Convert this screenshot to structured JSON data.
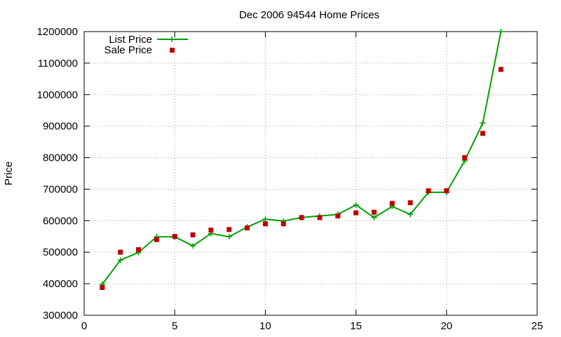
{
  "chart_data": {
    "type": "line",
    "title": "Dec 2006 94544 Home Prices",
    "xlabel": "",
    "ylabel": "Price",
    "xlim": [
      0,
      25
    ],
    "ylim": [
      300000,
      1200000
    ],
    "x_ticks": [
      0,
      5,
      10,
      15,
      20,
      25
    ],
    "y_ticks": [
      300000,
      400000,
      500000,
      600000,
      700000,
      800000,
      900000,
      1000000,
      1100000,
      1200000
    ],
    "grid": true,
    "legend_position": "top-left",
    "series": [
      {
        "name": "List Price",
        "style": "line-with-plus",
        "color": "#00a000",
        "x": [
          1,
          2,
          3,
          4,
          5,
          6,
          7,
          8,
          9,
          10,
          11,
          12,
          13,
          14,
          15,
          16,
          17,
          18,
          19,
          20,
          21,
          22,
          23
        ],
        "values": [
          398000,
          475000,
          499000,
          549000,
          549000,
          520000,
          559000,
          549000,
          580000,
          605000,
          599000,
          610000,
          615000,
          620000,
          650000,
          610000,
          645000,
          620000,
          690000,
          690000,
          790000,
          910000,
          1200000
        ]
      },
      {
        "name": "Sale Price",
        "style": "square-points",
        "color": "#c00000",
        "x": [
          1,
          2,
          3,
          4,
          5,
          6,
          7,
          8,
          9,
          10,
          11,
          12,
          13,
          14,
          15,
          16,
          17,
          18,
          19,
          20,
          21,
          22,
          23
        ],
        "values": [
          388000,
          500000,
          508000,
          540000,
          550000,
          555000,
          570000,
          572000,
          577000,
          590000,
          590000,
          610000,
          610000,
          615000,
          625000,
          627000,
          655000,
          657000,
          695000,
          695000,
          800000,
          877000,
          1080000
        ]
      }
    ]
  }
}
